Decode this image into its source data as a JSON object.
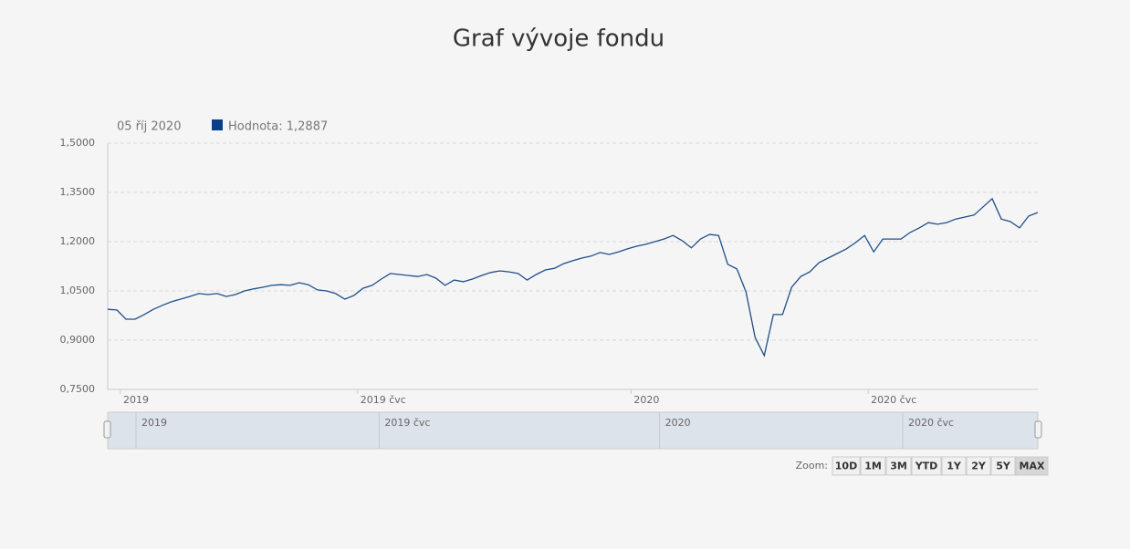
{
  "chart_data": {
    "type": "line",
    "title": "Graf vývoje fondu",
    "tooltip_date": "05 říj 2020",
    "legend_text": "Hodnota: 1,2887",
    "color": "#1f4f8a",
    "legend_color": "#0b3f85",
    "grid": true,
    "ylim": [
      0.75,
      1.5
    ],
    "yticks": [
      {
        "value": 0.75,
        "label": "0,7500"
      },
      {
        "value": 0.9,
        "label": "0,9000"
      },
      {
        "value": 1.05,
        "label": "1,0500"
      },
      {
        "value": 1.2,
        "label": "1,2000"
      },
      {
        "value": 1.35,
        "label": "1,3500"
      },
      {
        "value": 1.5,
        "label": "1,5000"
      }
    ],
    "categories": [
      null,
      null,
      "2019",
      null,
      null,
      null,
      null,
      null,
      null,
      null,
      null,
      null,
      null,
      null,
      null,
      null,
      null,
      null,
      null,
      null,
      null,
      null,
      null,
      null,
      null,
      null,
      null,
      null,
      "2019 čvc",
      null,
      null,
      null,
      null,
      null,
      null,
      null,
      null,
      null,
      null,
      null,
      null,
      null,
      null,
      null,
      null,
      null,
      null,
      null,
      null,
      null,
      null,
      null,
      null,
      null,
      null,
      null,
      null,
      null,
      "2020",
      null,
      null,
      null,
      null,
      null,
      null,
      null,
      null,
      null,
      null,
      null,
      null,
      null,
      null,
      null,
      null,
      null,
      null,
      null,
      null,
      null,
      null,
      null,
      null,
      null,
      "2020 čvc",
      null,
      null,
      null,
      null,
      null,
      null,
      null,
      null,
      null,
      null,
      null,
      null,
      null,
      null,
      null,
      null,
      null,
      null
    ],
    "values": [
      0.994,
      0.992,
      0.964,
      0.964,
      0.978,
      0.994,
      1.006,
      1.017,
      1.025,
      1.033,
      1.042,
      1.039,
      1.042,
      1.033,
      1.039,
      1.05,
      1.056,
      1.061,
      1.067,
      1.069,
      1.067,
      1.075,
      1.069,
      1.053,
      1.05,
      1.042,
      1.025,
      1.036,
      1.058,
      1.067,
      1.086,
      1.103,
      1.1,
      1.097,
      1.094,
      1.1,
      1.089,
      1.067,
      1.083,
      1.078,
      1.086,
      1.097,
      1.106,
      1.111,
      1.108,
      1.103,
      1.083,
      1.1,
      1.114,
      1.119,
      1.133,
      1.142,
      1.15,
      1.156,
      1.167,
      1.161,
      1.169,
      1.178,
      1.186,
      1.192,
      1.2,
      1.208,
      1.219,
      1.203,
      1.181,
      1.208,
      1.222,
      1.219,
      1.131,
      1.117,
      1.047,
      0.908,
      0.853,
      0.978,
      0.978,
      1.061,
      1.094,
      1.108,
      1.136,
      1.15,
      1.164,
      1.178,
      1.197,
      1.219,
      1.169,
      1.208,
      1.208,
      1.208,
      1.228,
      1.242,
      1.258,
      1.253,
      1.258,
      1.269,
      1.275,
      1.281,
      1.306,
      1.331,
      1.269,
      1.261,
      1.242,
      1.278,
      1.289
    ],
    "zoom_label": "Zoom:",
    "zoom_buttons": [
      "10D",
      "1M",
      "3M",
      "YTD",
      "1Y",
      "2Y",
      "5Y",
      "MAX"
    ],
    "zoom_selected": "MAX"
  }
}
